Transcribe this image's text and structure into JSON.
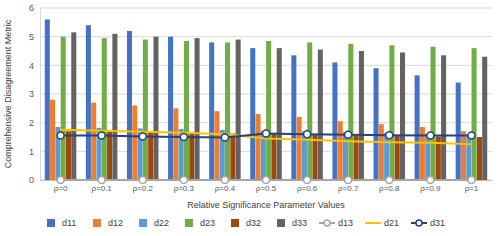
{
  "chart_data": {
    "type": "bar",
    "x_label": "Relative Significance Parameter Values",
    "y_label": "Comprehensive Disagreement Metric",
    "categories": [
      "ρ=0",
      "ρ=0.1",
      "ρ=0.2",
      "ρ=0.3",
      "ρ=0.4",
      "ρ=0.5",
      "ρ=0.6",
      "ρ=0.7",
      "ρ=0.8",
      "ρ=0.9",
      "ρ=1"
    ],
    "ylim": [
      0,
      6
    ],
    "yticks": [
      0,
      1,
      2,
      3,
      4,
      5,
      6
    ],
    "grid": true,
    "legend": "bottom",
    "series": [
      {
        "name": "d11",
        "type": "bar",
        "color": "#4472c4",
        "values": [
          5.6,
          5.4,
          5.2,
          5.0,
          4.8,
          4.6,
          4.35,
          4.1,
          3.9,
          3.65,
          3.4
        ]
      },
      {
        "name": "d12",
        "type": "bar",
        "color": "#ed7d31",
        "values": [
          2.8,
          2.7,
          2.6,
          2.5,
          2.4,
          2.3,
          2.2,
          2.05,
          1.95,
          1.85,
          1.7
        ]
      },
      {
        "name": "d22",
        "type": "bar",
        "color": "#5b9bd5",
        "values": [
          1.85,
          1.82,
          1.8,
          1.78,
          1.75,
          1.72,
          1.7,
          1.67,
          1.65,
          1.62,
          1.6
        ]
      },
      {
        "name": "d23",
        "type": "bar",
        "color": "#70ad47",
        "values": [
          5.0,
          4.95,
          4.9,
          4.85,
          4.8,
          4.85,
          4.8,
          4.75,
          4.7,
          4.65,
          4.6
        ]
      },
      {
        "name": "d32",
        "type": "bar",
        "color": "#9e480e",
        "values": [
          1.7,
          1.68,
          1.66,
          1.64,
          1.62,
          1.6,
          1.58,
          1.56,
          1.54,
          1.52,
          1.5
        ]
      },
      {
        "name": "d33",
        "type": "bar",
        "color": "#636363",
        "values": [
          5.15,
          5.1,
          5.0,
          4.95,
          4.9,
          4.6,
          4.55,
          4.5,
          4.45,
          4.35,
          4.3
        ]
      },
      {
        "name": "d13",
        "type": "line",
        "color": "#a5a5a5",
        "marker": "circle",
        "values": [
          0,
          0,
          0,
          0,
          0,
          0,
          0,
          0,
          0,
          0,
          0
        ]
      },
      {
        "name": "d21",
        "type": "line",
        "color": "#ffc000",
        "values": [
          1.75,
          1.72,
          1.68,
          1.65,
          1.6,
          1.45,
          1.4,
          1.35,
          1.32,
          1.3,
          1.25
        ]
      },
      {
        "name": "d31",
        "type": "line",
        "color": "#264478",
        "marker": "circle",
        "values": [
          1.55,
          1.55,
          1.52,
          1.5,
          1.48,
          1.62,
          1.6,
          1.58,
          1.56,
          1.55,
          1.55
        ]
      }
    ]
  }
}
